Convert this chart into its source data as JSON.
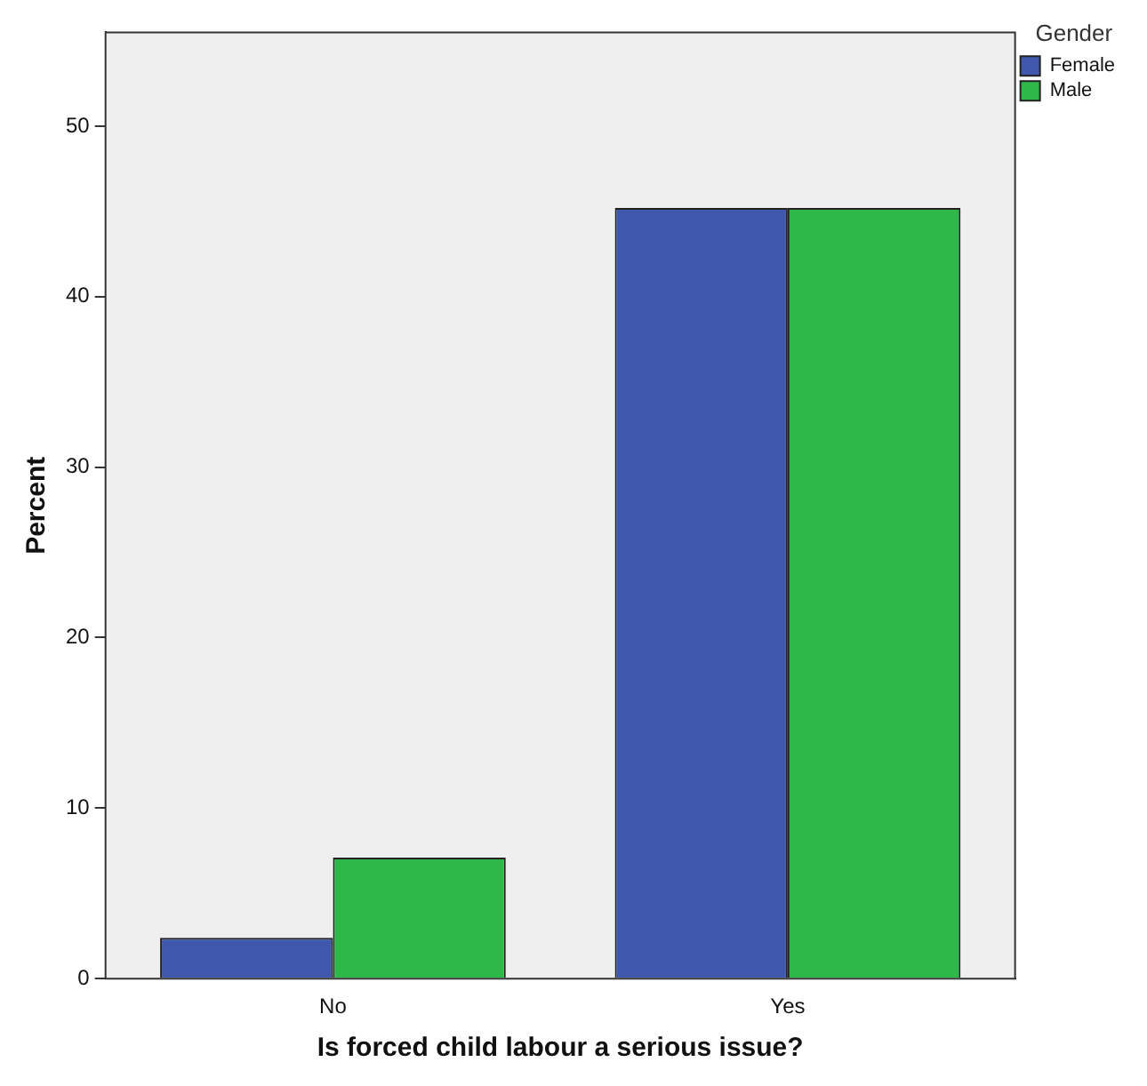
{
  "chart_data": {
    "type": "bar",
    "xlabel": "Is forced child labour a serious issue?",
    "ylabel": "Percent",
    "legend_title": "Gender",
    "legend": "top right",
    "grid": false,
    "categories": [
      "No",
      "Yes"
    ],
    "series": [
      {
        "name": "Female",
        "color": "#3f58ad",
        "values": [
          2.4,
          45.2
        ]
      },
      {
        "name": "Male",
        "color": "#2fb84a",
        "values": [
          7.1,
          45.2
        ]
      }
    ],
    "ylim": [
      0,
      55.5
    ],
    "yticks": [
      0,
      10,
      20,
      30,
      40,
      50
    ]
  }
}
